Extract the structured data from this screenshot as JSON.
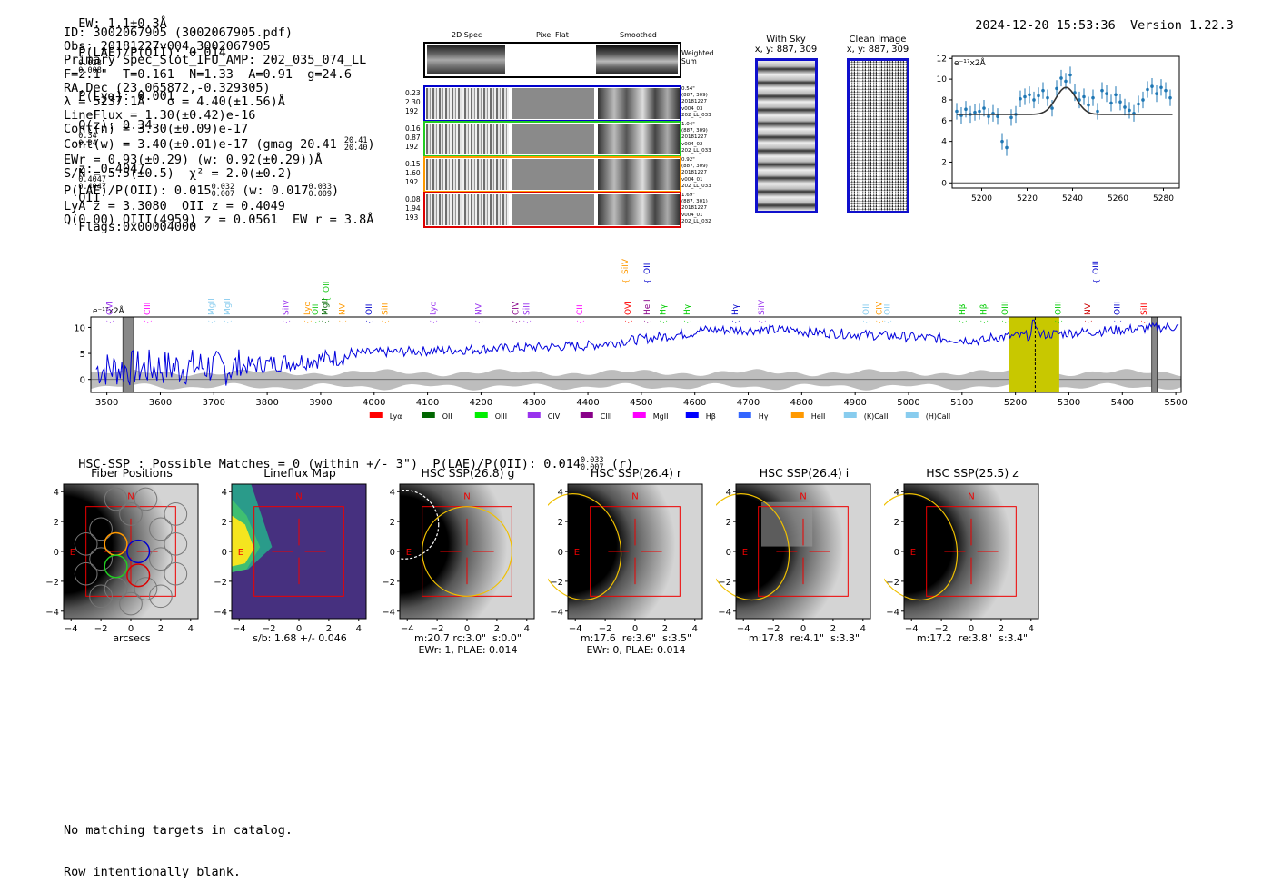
{
  "header": {
    "ew": "EW: 1.1±0.3Å",
    "plae_label": "P(LAE)/P(OII): 0.014",
    "plae_hi": "0.028",
    "plae_lo": "0.008",
    "plya": "P(Lyα): 0.001",
    "qz_label": "Q(z): 0.34",
    "qz_hi": "0.34",
    "qz_lo": "0.34",
    "z_label": "z: 0.4047",
    "z_hi": "0.4047",
    "z_lo": "0.4047",
    "z_line": "OII",
    "flags": "Flags:0x00004000",
    "datetime": "2024-12-20 15:53:36",
    "version": "Version 1.22.3"
  },
  "info": {
    "id": "ID: 3002067905 (3002067905.pdf)",
    "obs": "Obs: 20181227v004_3002067905",
    "primary": "Primary Spec_Slot_IFU_AMP: 202_035_074_LL",
    "fline": "F=2.1\"  T=0.161  N=1.33  A=0.91  g=24.6",
    "radec": "RA,Dec (23.065872,-0.329305)",
    "lambda": "λ = 5237.1Å   σ = 4.40(±1.56)Å",
    "lineflux": "LineFlux = 1.30(±0.42)e-16",
    "contn": "Cont(n) = 3.30(±0.09)e-17",
    "contw": "Cont(w) = 3.40(±0.01)e-17 (gmag 20.41",
    "contw_hi": "20.41",
    "contw_lo": "20.40",
    "ewr": "EWr = 0.93(±0.29) (w: 0.92(±0.29))Å",
    "sn": "S/N = 5.5(±0.5)  χ² = 2.0(±0.2)",
    "plae": "P(LAE)/P(OII): 0.015",
    "plae_hi": "0.032",
    "plae_lo": "0.007",
    "plae_w": "(w: 0.017",
    "plae_w_hi": "0.033",
    "plae_w_lo": "0.009",
    "lya_z": "LyA z = 3.3080  OII z = 0.4049",
    "q": "Q(0.00) OIII(4959) z = 0.0561  EW r = 3.8Å"
  },
  "cutouts": {
    "col_headers": [
      "2D Spec",
      "Pixel Flat",
      "Smoothed"
    ],
    "weighted_sum": "Weighted Sum",
    "rows": [
      {
        "left": [
          "0.23",
          "2.30",
          "192"
        ],
        "right": [
          "0.54\"",
          "(887, 309)",
          "20181227",
          "v004_03",
          "202_LL_033"
        ],
        "color": "#0000cc"
      },
      {
        "left": [
          "0.16",
          "0.87",
          "192"
        ],
        "right": [
          "1.04\"",
          "(887, 309)",
          "20181227",
          "v004_02",
          "202_LL_033"
        ],
        "color": "#22cc22"
      },
      {
        "left": [
          "0.15",
          "1.60",
          "192"
        ],
        "right": [
          "0.92\"",
          "(887, 309)",
          "20181227",
          "v004_01",
          "202_LL_033"
        ],
        "color": "#ff9900"
      },
      {
        "left": [
          "0.08",
          "1.94",
          "193"
        ],
        "right": [
          "1.69\"",
          "(887, 301)",
          "20181227",
          "v004_01",
          "202_LL_032"
        ],
        "color": "#dd0000"
      }
    ],
    "with_sky": "With Sky",
    "with_sky_xy": "x, y: 887, 309",
    "clean": "Clean Image",
    "clean_xy": "x, y: 887, 309"
  },
  "fit_plot": {
    "unit": "e⁻¹⁷x2Å",
    "xticks": [
      "5200",
      "5220",
      "5240",
      "5260",
      "5280"
    ],
    "yticks": [
      "12",
      "10",
      "8",
      "6",
      "4",
      "2",
      "0"
    ]
  },
  "chart_data": {
    "type": "line",
    "title": "",
    "xlabel": "",
    "ylabel": "e⁻¹⁷x2Å",
    "xlim": [
      3470,
      5510
    ],
    "ylim": [
      -2.5,
      12
    ],
    "xticks": [
      3500,
      3600,
      3700,
      3800,
      3900,
      4000,
      4100,
      4200,
      4300,
      4400,
      4500,
      4600,
      4700,
      4800,
      4900,
      5000,
      5100,
      5200,
      5300,
      5400,
      5500
    ],
    "yticks": [
      0,
      5,
      10
    ],
    "highlight_range": [
      5187,
      5282
    ],
    "marker_line": 5237,
    "gray_bands": [
      [
        3530,
        3550
      ],
      [
        5455,
        5465
      ]
    ],
    "legend": [
      {
        "name": "Lyα",
        "color": "#ff0000"
      },
      {
        "name": "OII",
        "color": "#006600"
      },
      {
        "name": "OIII",
        "color": "#00ee00"
      },
      {
        "name": "CIV",
        "color": "#9933ee"
      },
      {
        "name": "CIII",
        "color": "#880088"
      },
      {
        "name": "MgII",
        "color": "#ff00ff"
      },
      {
        "name": "Hβ",
        "color": "#0000ff"
      },
      {
        "name": "Hγ",
        "color": "#3366ff"
      },
      {
        "name": "HeII",
        "color": "#ff9900"
      },
      {
        "name": "(K)CaII",
        "color": "#88ccee"
      },
      {
        "name": "(H)CaII",
        "color": "#88ccee"
      }
    ],
    "lines": [
      {
        "name": "OVI",
        "x": 3505,
        "row": 2,
        "color": "#9933ee"
      },
      {
        "name": "CIII",
        "x": 3575,
        "row": 2,
        "color": "#ff00ff"
      },
      {
        "name": "MgII",
        "x": 3695,
        "row": 2,
        "color": "#88ccee"
      },
      {
        "name": "MgII",
        "x": 3725,
        "row": 2,
        "color": "#88ccee"
      },
      {
        "name": "SiIV",
        "x": 3835,
        "row": 2,
        "color": "#9933ee"
      },
      {
        "name": "Lyα",
        "x": 3875,
        "row": 2,
        "color": "#ff9900"
      },
      {
        "name": "OII",
        "x": 3890,
        "row": 2,
        "color": "#22cc22"
      },
      {
        "name": "MgII",
        "x": 3908,
        "row": 2,
        "color": "#006600"
      },
      {
        "name": "OII",
        "x": 3910,
        "row": 0,
        "color": "#22cc22"
      },
      {
        "name": "NV",
        "x": 3940,
        "row": 2,
        "color": "#ff9900"
      },
      {
        "name": "OII",
        "x": 3990,
        "row": 2,
        "color": "#0000cc"
      },
      {
        "name": "SiII",
        "x": 4020,
        "row": 2,
        "color": "#ff9900"
      },
      {
        "name": "Lyα",
        "x": 4110,
        "row": 2,
        "color": "#9933ee"
      },
      {
        "name": "NV",
        "x": 4195,
        "row": 2,
        "color": "#9933ee"
      },
      {
        "name": "CIV",
        "x": 4265,
        "row": 2,
        "color": "#880088"
      },
      {
        "name": "SiII",
        "x": 4285,
        "row": 2,
        "color": "#9933ee"
      },
      {
        "name": "CII",
        "x": 4385,
        "row": 2,
        "color": "#ff00ff"
      },
      {
        "name": "SiIV",
        "x": 4470,
        "row": 1,
        "color": "#ff9900"
      },
      {
        "name": "OVI",
        "x": 4475,
        "row": 2,
        "color": "#ff0000"
      },
      {
        "name": "OII",
        "x": 4510,
        "row": 1,
        "color": "#0000cc"
      },
      {
        "name": "HeII",
        "x": 4510,
        "row": 2,
        "color": "#880088"
      },
      {
        "name": "Hγ",
        "x": 4540,
        "row": 2,
        "color": "#00cc00"
      },
      {
        "name": "Hγ",
        "x": 4585,
        "row": 2,
        "color": "#00cc00"
      },
      {
        "name": "Hγ",
        "x": 4675,
        "row": 2,
        "color": "#0000cc"
      },
      {
        "name": "SiIV",
        "x": 4725,
        "row": 2,
        "color": "#9933ee"
      },
      {
        "name": "OII",
        "x": 4920,
        "row": 2,
        "color": "#88ccee"
      },
      {
        "name": "CIV",
        "x": 4945,
        "row": 2,
        "color": "#ff9900"
      },
      {
        "name": "OII",
        "x": 4960,
        "row": 2,
        "color": "#88ccee"
      },
      {
        "name": "Hβ",
        "x": 5100,
        "row": 2,
        "color": "#00cc00"
      },
      {
        "name": "Hβ",
        "x": 5140,
        "row": 2,
        "color": "#00cc00"
      },
      {
        "name": "OIII",
        "x": 5180,
        "row": 2,
        "color": "#00cc00"
      },
      {
        "name": "OIII",
        "x": 5280,
        "row": 2,
        "color": "#00cc00"
      },
      {
        "name": "NV",
        "x": 5335,
        "row": 2,
        "color": "#cc0000"
      },
      {
        "name": "OIII",
        "x": 5350,
        "row": 1,
        "color": "#0000cc"
      },
      {
        "name": "OIII",
        "x": 5390,
        "row": 2,
        "color": "#0000cc"
      },
      {
        "name": "SiII",
        "x": 5440,
        "row": 2,
        "color": "#ff0000"
      }
    ]
  },
  "hsc": {
    "title_prefix": "HSC-SSP : Possible Matches = 0 (within +/- 3\")  P(LAE)/P(OII): 0.014",
    "hi": "0.033",
    "lo": "0.007",
    "suffix": "(r)"
  },
  "panels": [
    {
      "title": "Fiber Positions",
      "xlabel": "arcsecs",
      "cap2": ""
    },
    {
      "title": "Lineflux Map",
      "xlabel": "s/b: 1.68 +/- 0.046",
      "cap2": ""
    },
    {
      "title": "HSC SSP(26.8) g",
      "xlabel": "m:20.7 rc:3.0\"  s:0.0\"",
      "cap2": "EWr: 1, PLAE: 0.014"
    },
    {
      "title": "HSC SSP(26.4) r",
      "xlabel": "m:17.6  re:3.6\"  s:3.5\"",
      "cap2": "EWr: 0, PLAE: 0.014"
    },
    {
      "title": "HSC SSP(26.4) i",
      "xlabel": "m:17.8  re:4.1\"  s:3.3\"",
      "cap2": ""
    },
    {
      "title": "HSC SSP(25.5) z",
      "xlabel": "m:17.2  re:3.8\"  s:3.4\"",
      "cap2": ""
    }
  ],
  "panel_ticks": {
    "x": [
      "−4",
      "−2",
      "0",
      "2",
      "4"
    ],
    "y": [
      "4",
      "2",
      "0",
      "−2",
      "−4"
    ],
    "n": "N",
    "e": "E"
  },
  "footer": {
    "line1": "No matching targets in catalog.",
    "line2": "Row intentionally blank."
  }
}
